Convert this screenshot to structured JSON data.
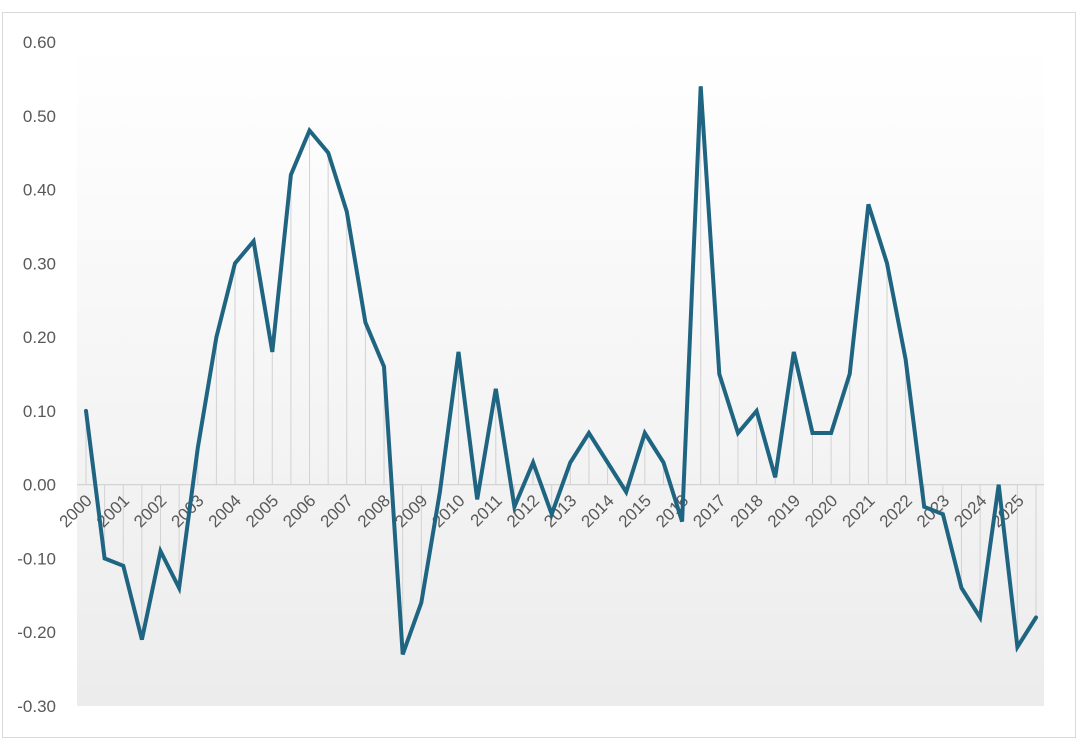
{
  "chart_data": {
    "type": "line",
    "title": "",
    "xlabel": "",
    "ylabel": "",
    "ylim": [
      -0.3,
      0.6
    ],
    "y_ticks": [
      "0.60",
      "0.50",
      "0.40",
      "0.30",
      "0.20",
      "0.10",
      "0.00",
      "-0.10",
      "-0.20",
      "-0.30"
    ],
    "x_tick_labels": [
      "2000",
      "2001",
      "2002",
      "2003",
      "2004",
      "2005",
      "2006",
      "2007",
      "2008",
      "2009",
      "2010",
      "2011",
      "2012",
      "2013",
      "2014",
      "2015",
      "2016",
      "2017",
      "2018",
      "2019",
      "2020",
      "2021",
      "2022",
      "2023",
      "2024",
      "2025"
    ],
    "grid": false,
    "drop_lines": true,
    "line_color": "#1f6582",
    "background_gradient": [
      "#ffffff",
      "#ececec"
    ],
    "series": [
      {
        "values": [
          0.1,
          -0.1,
          -0.11,
          -0.21,
          -0.09,
          -0.14,
          0.05,
          0.2,
          0.3,
          0.33,
          0.18,
          0.42,
          0.48,
          0.45,
          0.37,
          0.22,
          0.16,
          -0.23,
          -0.16,
          -0.01,
          0.18,
          -0.02,
          0.13,
          -0.03,
          0.03,
          -0.04,
          0.03,
          0.07,
          0.03,
          -0.01,
          0.07,
          0.03,
          -0.05,
          0.54,
          0.15,
          0.07,
          0.1,
          0.01,
          0.18,
          0.07,
          0.07,
          0.15,
          0.38,
          0.3,
          0.17,
          -0.03,
          -0.04,
          -0.14,
          -0.18,
          0.0,
          -0.22,
          -0.18
        ]
      }
    ]
  }
}
